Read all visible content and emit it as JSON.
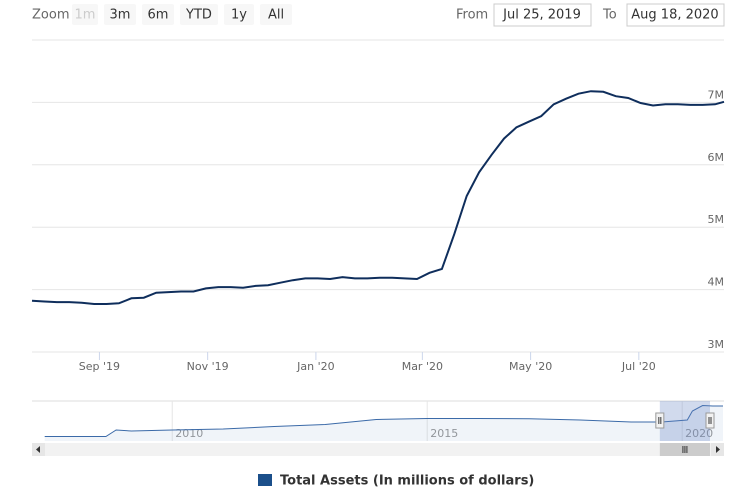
{
  "chart_data": {
    "type": "line",
    "range_selector": {
      "label": "Zoom",
      "buttons": [
        "1m",
        "3m",
        "6m",
        "YTD",
        "1y",
        "All"
      ],
      "disabled": [
        "1m"
      ]
    },
    "from_label": "From",
    "from": "Jul 25, 2019",
    "to_label": "To",
    "to": "Aug 18, 2020",
    "x": [
      "2019-07-25",
      "2019-08-01",
      "2019-08-08",
      "2019-08-15",
      "2019-08-22",
      "2019-08-29",
      "2019-09-05",
      "2019-09-12",
      "2019-09-19",
      "2019-09-26",
      "2019-10-03",
      "2019-10-10",
      "2019-10-17",
      "2019-10-24",
      "2019-10-31",
      "2019-11-07",
      "2019-11-14",
      "2019-11-21",
      "2019-11-28",
      "2019-12-05",
      "2019-12-12",
      "2019-12-19",
      "2019-12-26",
      "2020-01-02",
      "2020-01-09",
      "2020-01-16",
      "2020-01-23",
      "2020-01-30",
      "2020-02-06",
      "2020-02-13",
      "2020-02-20",
      "2020-02-27",
      "2020-03-05",
      "2020-03-12",
      "2020-03-19",
      "2020-03-26",
      "2020-04-02",
      "2020-04-09",
      "2020-04-16",
      "2020-04-23",
      "2020-04-30",
      "2020-05-07",
      "2020-05-14",
      "2020-05-21",
      "2020-05-28",
      "2020-06-04",
      "2020-06-11",
      "2020-06-18",
      "2020-06-25",
      "2020-07-02",
      "2020-07-09",
      "2020-07-16",
      "2020-07-23",
      "2020-07-30",
      "2020-08-06",
      "2020-08-13",
      "2020-08-18"
    ],
    "series": [
      {
        "name": "Total Assets (In millions of dollars)",
        "color": "#0f2e5c",
        "values": [
          3820000,
          3810000,
          3800000,
          3800000,
          3790000,
          3770000,
          3770000,
          3780000,
          3860000,
          3870000,
          3950000,
          3960000,
          3970000,
          3970000,
          4020000,
          4040000,
          4040000,
          4030000,
          4060000,
          4070000,
          4110000,
          4150000,
          4180000,
          4180000,
          4170000,
          4200000,
          4180000,
          4180000,
          4190000,
          4190000,
          4180000,
          4170000,
          4270000,
          4330000,
          4890000,
          5500000,
          5880000,
          6160000,
          6420000,
          6600000,
          6690000,
          6780000,
          6970000,
          7060000,
          7140000,
          7180000,
          7170000,
          7100000,
          7070000,
          6990000,
          6950000,
          6970000,
          6970000,
          6960000,
          6960000,
          6970000,
          7010000
        ]
      }
    ],
    "xlim": [
      "2019-07-25",
      "2020-08-18"
    ],
    "xticks": [
      {
        "value": "2019-09-01",
        "label": "Sep '19"
      },
      {
        "value": "2019-11-01",
        "label": "Nov '19"
      },
      {
        "value": "2020-01-01",
        "label": "Jan '20"
      },
      {
        "value": "2020-03-01",
        "label": "Mar '20"
      },
      {
        "value": "2020-05-01",
        "label": "May '20"
      },
      {
        "value": "2020-07-01",
        "label": "Jul '20"
      }
    ],
    "ylim": [
      3000000,
      8000000
    ],
    "yticks": [
      {
        "value": 3000000,
        "label": "3M"
      },
      {
        "value": 4000000,
        "label": "4M"
      },
      {
        "value": 5000000,
        "label": "5M"
      },
      {
        "value": 6000000,
        "label": "6M"
      },
      {
        "value": 7000000,
        "label": "7M"
      }
    ],
    "grid": true,
    "navigator": {
      "x": [
        2007.5,
        2008.7,
        2008.9,
        2009.2,
        2010,
        2011,
        2012,
        2013,
        2014,
        2015,
        2016,
        2017,
        2018,
        2019,
        2019.6,
        2020.1,
        2020.2,
        2020.4,
        2020.6,
        2020.8
      ],
      "values": [
        900000,
        900000,
        2200000,
        2000000,
        2200000,
        2400000,
        2900000,
        3300000,
        4300000,
        4500000,
        4500000,
        4450000,
        4200000,
        3800000,
        3800000,
        4200000,
        6000000,
        7100000,
        7000000,
        7000000
      ],
      "xlim": [
        2007.25,
        2020.82
      ],
      "ylim": [
        0,
        8000000
      ],
      "xticks": [
        2010,
        2015,
        2020
      ]
    }
  }
}
